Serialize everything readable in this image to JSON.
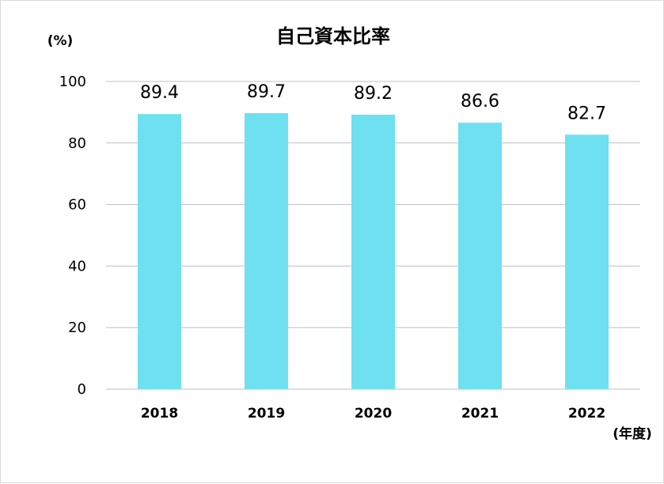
{
  "chart_data": {
    "type": "bar",
    "title": "自己資本比率",
    "ylabel": "(%)",
    "xlabel": "(年度)",
    "categories": [
      "2018",
      "2019",
      "2020",
      "2021",
      "2022"
    ],
    "values": [
      89.4,
      89.7,
      89.2,
      86.6,
      82.7
    ],
    "value_labels": [
      "89.4",
      "89.7",
      "89.2",
      "86.6",
      "82.7"
    ],
    "ylim": [
      0,
      100
    ],
    "yticks": [
      0,
      20,
      40,
      60,
      80,
      100
    ],
    "grid": true,
    "bar_color": "#6fe0f0",
    "grid_color": "#bfbfbf"
  }
}
